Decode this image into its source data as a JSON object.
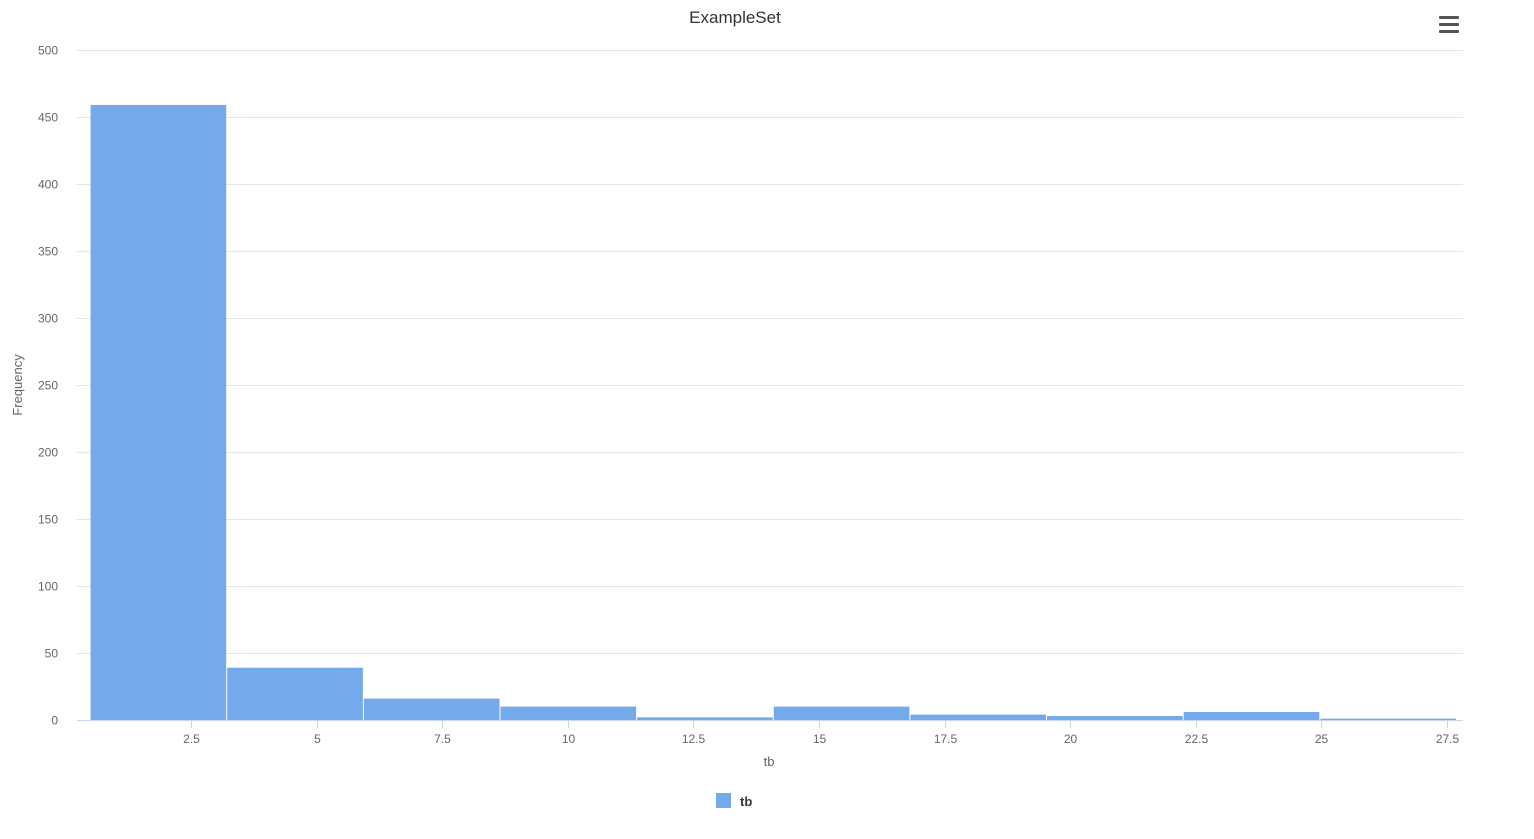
{
  "menu": {
    "icon": "hamburger-menu-icon"
  },
  "chart_data": {
    "type": "bar",
    "title": "ExampleSet",
    "xlabel": "tb",
    "ylabel": "Frequency",
    "xlim": [
      0.23,
      27.82
    ],
    "ylim": [
      0,
      500
    ],
    "yticks": [
      0,
      50,
      100,
      150,
      200,
      250,
      300,
      350,
      400,
      450,
      500
    ],
    "xticks": [
      2.5,
      5,
      7.5,
      10,
      12.5,
      15,
      17.5,
      20,
      22.5,
      25,
      27.5
    ],
    "xtick_labels": [
      "2.5",
      "5",
      "7.5",
      "10",
      "12.5",
      "15",
      "17.5",
      "20",
      "22.5",
      "25",
      "27.5"
    ],
    "grid": true,
    "legend_position": "bottom-center",
    "colors": {
      "bar": "#74a9eb",
      "grid": "#e6e6e6",
      "axis": "#ccd6eb",
      "text": "#666666",
      "title": "#333333"
    },
    "bins": [
      {
        "start": 0.5,
        "end": 3.22,
        "count": 459
      },
      {
        "start": 3.22,
        "end": 5.94,
        "count": 39
      },
      {
        "start": 5.94,
        "end": 8.66,
        "count": 16
      },
      {
        "start": 8.66,
        "end": 11.38,
        "count": 10
      },
      {
        "start": 11.38,
        "end": 14.1,
        "count": 2
      },
      {
        "start": 14.1,
        "end": 16.82,
        "count": 10
      },
      {
        "start": 16.82,
        "end": 19.54,
        "count": 4
      },
      {
        "start": 19.54,
        "end": 22.26,
        "count": 3
      },
      {
        "start": 22.26,
        "end": 24.98,
        "count": 6
      },
      {
        "start": 24.98,
        "end": 27.7,
        "count": 1
      }
    ],
    "series": [
      {
        "name": "tb"
      }
    ]
  }
}
